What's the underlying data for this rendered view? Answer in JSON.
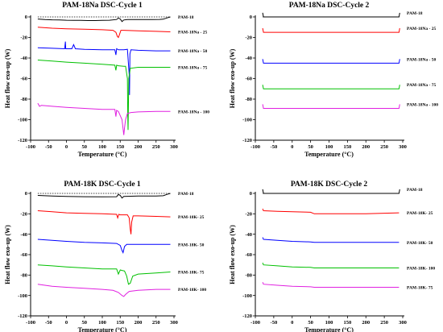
{
  "chart_data": [
    {
      "type": "line",
      "title": "PAM-18Na DSC-Cycle 1",
      "xlabel": "Temperature (°C)",
      "ylabel": "Heat flow exo-up (W)",
      "xlim": [
        -100,
        300
      ],
      "ylim": [
        -120,
        0
      ],
      "xticks": [
        -100,
        -50,
        0,
        50,
        100,
        150,
        200,
        250,
        300
      ],
      "yticks": [
        -120,
        -100,
        -80,
        -60,
        -40,
        -20,
        0
      ],
      "series": [
        {
          "name": "PAM-18",
          "color": "#000000",
          "dashed_baseline": true,
          "x": [
            -80,
            -60,
            -40,
            -20,
            0,
            20,
            40,
            60,
            80,
            100,
            120,
            140,
            145,
            150,
            155,
            160,
            170,
            180,
            200,
            220,
            240,
            260,
            270,
            280,
            290
          ],
          "y": [
            -2,
            -2.5,
            -2.8,
            -3,
            -3.2,
            -3.3,
            -3.3,
            -3.5,
            -3.5,
            -3.4,
            -3.2,
            -2.5,
            -1,
            -2,
            -4.5,
            -3,
            -2.6,
            -2.6,
            -2.6,
            -2.5,
            -2.5,
            -2.4,
            -2.2,
            -1,
            0
          ]
        },
        {
          "name": "PAM-18Na - 25",
          "color": "#ff0000",
          "x": [
            -80,
            -40,
            0,
            50,
            100,
            130,
            138,
            142,
            145,
            148,
            152,
            160,
            200,
            250,
            290
          ],
          "y": [
            -10,
            -11,
            -11.5,
            -12,
            -12.5,
            -13,
            -15,
            -19,
            -20,
            -17,
            -13,
            -13,
            -13.5,
            -14,
            -14.5
          ]
        },
        {
          "name": "PAM-18Na - 50",
          "color": "#0000ff",
          "x": [
            -80,
            -40,
            -5,
            -3,
            -2,
            0,
            15,
            20,
            25,
            50,
            100,
            135,
            138,
            140,
            145,
            160,
            170,
            175,
            176,
            177,
            180,
            200,
            250,
            290
          ],
          "y": [
            -30,
            -30.5,
            -31,
            -24,
            -31,
            -31,
            -31,
            -27,
            -31,
            -31.5,
            -32,
            -32,
            -37,
            -31,
            -32,
            -32,
            -31.5,
            -56,
            -76,
            -36,
            -32,
            -32.5,
            -33,
            -33
          ]
        },
        {
          "name": "PAM-18Na - 75",
          "color": "#00c000",
          "x": [
            -80,
            -40,
            0,
            50,
            100,
            135,
            138,
            140,
            145,
            160,
            165,
            170,
            171,
            172,
            174,
            178,
            200,
            250,
            290
          ],
          "y": [
            -42,
            -43,
            -44,
            -45,
            -46,
            -47,
            -52,
            -47,
            -47.5,
            -48,
            -48,
            -60,
            -95,
            -110,
            -60,
            -50,
            -49,
            -49,
            -49
          ]
        },
        {
          "name": "PAM-18Na - 100",
          "color": "#e020e0",
          "x": [
            -80,
            -75,
            -70,
            -40,
            0,
            50,
            100,
            135,
            138,
            140,
            145,
            155,
            160,
            162,
            165,
            170,
            180,
            200,
            250,
            290
          ],
          "y": [
            -84,
            -87,
            -86,
            -87,
            -88,
            -89,
            -90,
            -90,
            -97,
            -91,
            -92,
            -100,
            -115,
            -108,
            -100,
            -94,
            -93,
            -92.5,
            -92,
            -92
          ]
        }
      ]
    },
    {
      "type": "line",
      "title": "PAM-18Na DSC-Cycle 2",
      "xlabel": "Temperature (°C)",
      "ylabel": "Heat flow exo-up (W)",
      "xlim": [
        -100,
        300
      ],
      "ylim": [
        -120,
        0
      ],
      "xticks": [
        -100,
        -50,
        0,
        50,
        100,
        150,
        200,
        250,
        300
      ],
      "yticks": [
        -120,
        -100,
        -80,
        -60,
        -40,
        -20,
        0
      ],
      "series": [
        {
          "name": "PAM-18",
          "color": "#000000",
          "dashed_baseline": true,
          "x": [
            -80,
            -78,
            0,
            100,
            200,
            290,
            292
          ],
          "y": [
            4,
            0,
            0,
            0,
            0,
            0,
            4
          ]
        },
        {
          "name": "PAM-18Na - 25",
          "color": "#ff0000",
          "x": [
            -80,
            -78,
            0,
            100,
            200,
            290,
            292
          ],
          "y": [
            -11,
            -15,
            -15,
            -15,
            -15,
            -15,
            -11
          ]
        },
        {
          "name": "PAM-18Na - 50",
          "color": "#0000ff",
          "x": [
            -80,
            -78,
            0,
            100,
            200,
            290,
            292
          ],
          "y": [
            -41,
            -45,
            -45,
            -45,
            -45,
            -45,
            -41
          ]
        },
        {
          "name": "PAM-18Na - 75",
          "color": "#00c000",
          "x": [
            -80,
            -78,
            0,
            100,
            200,
            290,
            292
          ],
          "y": [
            -66,
            -70,
            -70,
            -70,
            -70,
            -70,
            -66
          ]
        },
        {
          "name": "PAM-18Na - 100",
          "color": "#e020e0",
          "x": [
            -80,
            -78,
            0,
            100,
            200,
            290,
            292
          ],
          "y": [
            -85,
            -89,
            -89,
            -89,
            -89,
            -89,
            -85
          ]
        }
      ]
    },
    {
      "type": "line",
      "title": "PAM-18K DSC-Cycle 1",
      "xlabel": "Temperature (°C)",
      "ylabel": "Heat flow exo-up (W)",
      "xlim": [
        -100,
        300
      ],
      "ylim": [
        -120,
        0
      ],
      "xticks": [
        -100,
        -50,
        0,
        50,
        100,
        150,
        200,
        250,
        300
      ],
      "yticks": [
        -120,
        -100,
        -80,
        -60,
        -40,
        -20,
        0
      ],
      "series": [
        {
          "name": "PAM-18",
          "color": "#000000",
          "dashed_baseline": true,
          "x": [
            -80,
            -40,
            0,
            50,
            100,
            140,
            145,
            150,
            155,
            160,
            200,
            250,
            270,
            280,
            290
          ],
          "y": [
            -2,
            -2.5,
            -3,
            -3.2,
            -3.4,
            -3.2,
            -1,
            -2,
            -4.5,
            -3,
            -2.6,
            -2.5,
            -2.3,
            -1,
            0
          ]
        },
        {
          "name": "PAM-18K- 25",
          "color": "#ff0000",
          "x": [
            -80,
            -40,
            0,
            50,
            100,
            140,
            143,
            146,
            150,
            170,
            175,
            178,
            180,
            182,
            186,
            200,
            250,
            290
          ],
          "y": [
            -17,
            -18,
            -19,
            -19.5,
            -20,
            -20.5,
            -24,
            -20.5,
            -21,
            -21,
            -24,
            -35,
            -40,
            -28,
            -22,
            -22,
            -22.5,
            -23
          ]
        },
        {
          "name": "PAM-18K- 50",
          "color": "#0000ff",
          "x": [
            -80,
            -40,
            0,
            50,
            100,
            140,
            150,
            155,
            158,
            162,
            168,
            180,
            200,
            250,
            290
          ],
          "y": [
            -45,
            -46,
            -47,
            -48,
            -48.5,
            -49,
            -51,
            -56,
            -58,
            -52,
            -50,
            -50,
            -50,
            -50,
            -50
          ]
        },
        {
          "name": "PAM-18K- 75",
          "color": "#00c000",
          "x": [
            -80,
            -40,
            0,
            50,
            100,
            140,
            145,
            150,
            155,
            162,
            168,
            173,
            178,
            185,
            200,
            250,
            290
          ],
          "y": [
            -70,
            -71,
            -72,
            -73,
            -74,
            -74,
            -79,
            -75,
            -75.5,
            -76,
            -81,
            -89,
            -88,
            -81,
            -79,
            -78,
            -77
          ]
        },
        {
          "name": "PAM-18K- 100",
          "color": "#e020e0",
          "x": [
            -80,
            -40,
            0,
            50,
            100,
            130,
            145,
            155,
            160,
            165,
            175,
            200,
            250,
            290
          ],
          "y": [
            -89,
            -91,
            -92,
            -93,
            -94,
            -95,
            -97,
            -100,
            -101,
            -99,
            -96,
            -95,
            -94,
            -94
          ]
        }
      ]
    },
    {
      "type": "line",
      "title": "PAM-18K DSC-Cycle 2",
      "xlabel": "Temperature (°C)",
      "ylabel": "Heat flow exo-up (W)",
      "xlim": [
        -100,
        300
      ],
      "ylim": [
        -120,
        0
      ],
      "xticks": [
        -100,
        -50,
        0,
        50,
        100,
        150,
        200,
        250,
        300
      ],
      "yticks": [
        -120,
        -100,
        -80,
        -60,
        -40,
        -20,
        0
      ],
      "series": [
        {
          "name": "PAM-18",
          "color": "#000000",
          "dashed_baseline": true,
          "x": [
            -80,
            -78,
            0,
            100,
            200,
            290,
            292
          ],
          "y": [
            4,
            0,
            0,
            0,
            0,
            0,
            4
          ]
        },
        {
          "name": "PAM-18K- 25",
          "color": "#ff0000",
          "x": [
            -80,
            -78,
            -40,
            0,
            50,
            60,
            100,
            200,
            290
          ],
          "y": [
            -15,
            -17,
            -17.5,
            -18,
            -18.5,
            -20,
            -20,
            -20,
            -19
          ]
        },
        {
          "name": "PAM-18K- 50",
          "color": "#0000ff",
          "x": [
            -80,
            -78,
            -40,
            0,
            50,
            60,
            100,
            200,
            290
          ],
          "y": [
            -43,
            -45,
            -46,
            -47,
            -47.5,
            -48,
            -48,
            -48,
            -48
          ]
        },
        {
          "name": "PAM-18K- 100",
          "color": "#00c000",
          "x": [
            -80,
            -78,
            -40,
            0,
            50,
            60,
            100,
            200,
            290
          ],
          "y": [
            -68,
            -70,
            -71,
            -72,
            -72.5,
            -73,
            -73,
            -73,
            -73
          ]
        },
        {
          "name": "PAM-18K- 75",
          "color": "#e020e0",
          "x": [
            -80,
            -78,
            -40,
            0,
            50,
            60,
            100,
            200,
            290
          ],
          "y": [
            -87,
            -89,
            -90,
            -91,
            -91.5,
            -92,
            -92,
            -92,
            -92
          ]
        }
      ]
    }
  ]
}
